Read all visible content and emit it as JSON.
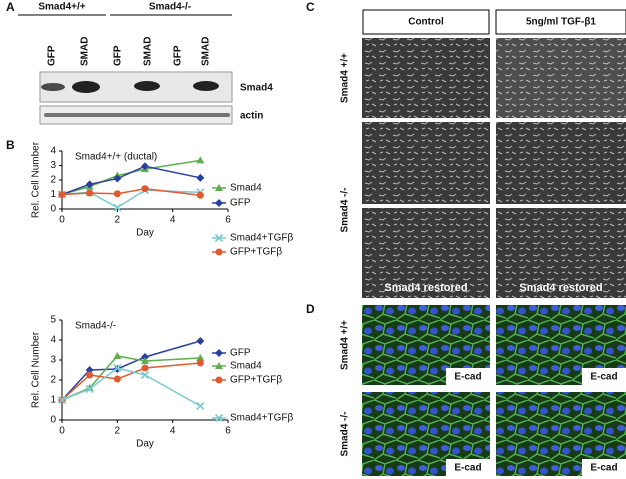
{
  "panel_a": {
    "letter": "A",
    "groups": [
      "Smad4+/+",
      "Smad4-/-"
    ],
    "lanes": [
      "GFP",
      "SMAD",
      "GFP",
      "SMAD",
      "GFP",
      "SMAD"
    ],
    "blots": [
      "Smad4",
      "actin"
    ]
  },
  "panel_b": {
    "letter": "B"
  },
  "chart_data": [
    {
      "type": "line",
      "title": "Smad4+/+ (ductal)",
      "x_label": "Day",
      "y_label": "Rel. Cell Number",
      "x": [
        0,
        1,
        2,
        3,
        5
      ],
      "xlim": [
        0,
        6
      ],
      "xticks": [
        0,
        2,
        4,
        6
      ],
      "ylim": [
        0,
        4
      ],
      "yticks": [
        0,
        1,
        2,
        3,
        4
      ],
      "series": [
        {
          "name": "Smad4",
          "color": "#5fae4e",
          "marker": "triangle",
          "values": [
            1.0,
            1.55,
            2.3,
            2.75,
            3.35
          ]
        },
        {
          "name": "GFP",
          "color": "#2b3f9c",
          "marker": "diamond",
          "values": [
            1.0,
            1.7,
            2.1,
            2.95,
            2.15
          ]
        },
        {
          "name": "Smad4+TGFβ",
          "color": "#7cc9cf",
          "marker": "x",
          "values": [
            1.0,
            1.15,
            0.1,
            1.3,
            1.15
          ]
        },
        {
          "name": "GFP+TGFβ",
          "color": "#e05a2f",
          "marker": "circle",
          "values": [
            1.0,
            1.1,
            1.05,
            1.4,
            0.95
          ]
        }
      ]
    },
    {
      "type": "line",
      "title": "Smad4-/-",
      "x_label": "Day",
      "y_label": "Rel. Cell Number",
      "x": [
        0,
        1,
        2,
        3,
        5
      ],
      "xlim": [
        0,
        6
      ],
      "xticks": [
        0,
        2,
        4,
        6
      ],
      "ylim": [
        0,
        5
      ],
      "yticks": [
        0,
        1,
        2,
        3,
        4,
        5
      ],
      "series": [
        {
          "name": "GFP",
          "color": "#2b3f9c",
          "marker": "diamond",
          "values": [
            1.0,
            2.5,
            2.55,
            3.15,
            3.95
          ]
        },
        {
          "name": "Smad4",
          "color": "#5fae4e",
          "marker": "triangle",
          "values": [
            1.0,
            1.6,
            3.2,
            2.95,
            3.1
          ]
        },
        {
          "name": "GFP+TGFβ",
          "color": "#e05a2f",
          "marker": "circle",
          "values": [
            1.0,
            2.25,
            2.05,
            2.6,
            2.85
          ]
        },
        {
          "name": "Smad4+TGFβ",
          "color": "#7cc9cf",
          "marker": "x",
          "values": [
            1.0,
            1.55,
            2.6,
            2.25,
            0.7
          ]
        }
      ]
    }
  ],
  "panel_c": {
    "letter": "C",
    "columns": [
      "Control",
      "5ng/ml TGF-β1"
    ],
    "rows": [
      "Smad4 +/+",
      "Smad4 -/-"
    ],
    "captions": [
      "Smad4 restored",
      "Smad4 restored"
    ]
  },
  "panel_d": {
    "letter": "D",
    "rows": [
      "Smad4 +/+",
      "Smad4 -/-"
    ],
    "captions": [
      "E-cad",
      "E-cad",
      "E-cad",
      "E-cad"
    ]
  }
}
